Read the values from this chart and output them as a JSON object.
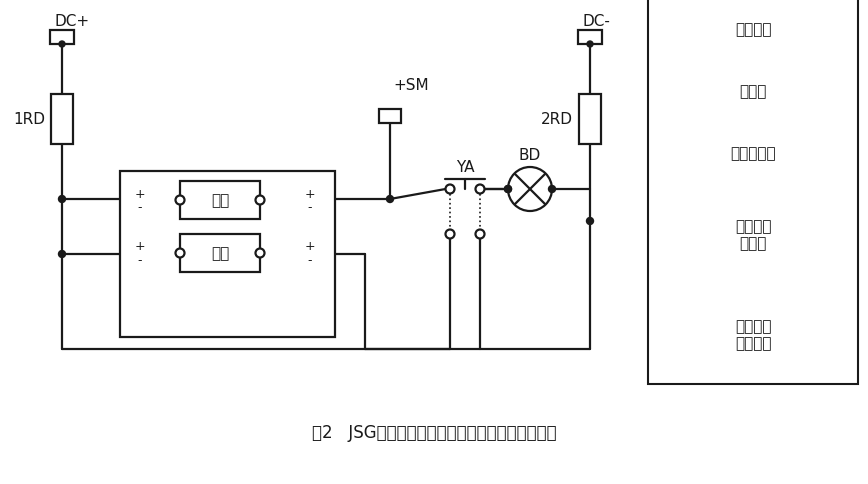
{
  "title": "图2   JSG系列静态闪光继电器应用外部接线参考图",
  "title_fontsize": 12,
  "bg_color": "#ffffff",
  "line_color": "#1a1a1a",
  "text_color": "#1a1a1a",
  "legend_labels": [
    "直流母线",
    "熔断器",
    "闪光小母线",
    "静态闪光\n断电器",
    "试验按钮\n及信号灯"
  ],
  "font_size_main": 11,
  "font_size_small": 10
}
